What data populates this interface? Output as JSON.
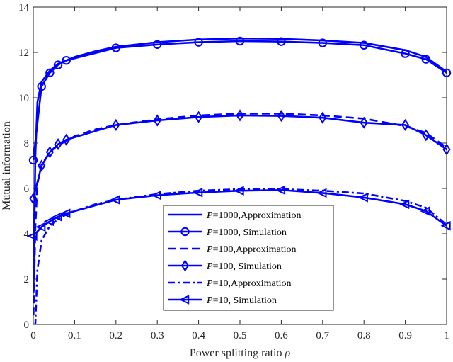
{
  "chart_data": {
    "type": "line",
    "xlabel": "Power splitting ratio",
    "xlabel_symbol": "ρ",
    "ylabel": "Mutual information",
    "xlim": [
      0,
      1
    ],
    "ylim": [
      0,
      14
    ],
    "xticks": [
      0,
      0.1,
      0.2,
      0.3,
      0.4,
      0.5,
      0.6,
      0.7,
      0.8,
      0.9,
      1
    ],
    "xtick_labels": [
      "0",
      "0.1",
      "0.2",
      "0.3",
      "0.4",
      "0.5",
      "0.6",
      "0.7",
      "0.8",
      "0.9",
      "1"
    ],
    "yticks": [
      0,
      2,
      4,
      6,
      8,
      10,
      12,
      14
    ],
    "ytick_labels": [
      "0",
      "2",
      "4",
      "6",
      "8",
      "10",
      "12",
      "14"
    ],
    "grid": false,
    "legend_position": "bottom-center",
    "line_color": "#0000FF",
    "series": [
      {
        "name_italic": "P",
        "name_rest": "=1000,Approximation",
        "style": "solid",
        "marker": "none",
        "x": [
          0.0005,
          0.005,
          0.01,
          0.02,
          0.04,
          0.06,
          0.08,
          0.1,
          0.15,
          0.2,
          0.3,
          0.4,
          0.5,
          0.6,
          0.7,
          0.8,
          0.9,
          0.95,
          1.0
        ],
        "y": [
          1.4,
          7.4,
          9.8,
          10.7,
          11.2,
          11.5,
          11.65,
          11.8,
          12.05,
          12.25,
          12.45,
          12.57,
          12.62,
          12.6,
          12.53,
          12.42,
          12.1,
          11.8,
          11.15
        ]
      },
      {
        "name_italic": "P",
        "name_rest": "=1000, Simulation",
        "style": "solid",
        "marker": "circle",
        "x": [
          0,
          0.02,
          0.04,
          0.06,
          0.08,
          0.2,
          0.3,
          0.4,
          0.5,
          0.6,
          0.7,
          0.8,
          0.9,
          0.95,
          1.0
        ],
        "y": [
          7.25,
          10.5,
          11.1,
          11.45,
          11.65,
          12.2,
          12.35,
          12.45,
          12.5,
          12.48,
          12.42,
          12.32,
          11.95,
          11.7,
          11.1
        ]
      },
      {
        "name_italic": "P",
        "name_rest": "=100,Approximation",
        "style": "dashed",
        "marker": "none",
        "x": [
          0.0005,
          0.005,
          0.01,
          0.02,
          0.04,
          0.06,
          0.08,
          0.1,
          0.15,
          0.2,
          0.3,
          0.4,
          0.5,
          0.6,
          0.7,
          0.8,
          0.9,
          0.95,
          1.0
        ],
        "y": [
          0.4,
          4.3,
          6.2,
          7.05,
          7.6,
          7.9,
          8.1,
          8.3,
          8.6,
          8.8,
          9.05,
          9.22,
          9.3,
          9.3,
          9.22,
          9.08,
          8.75,
          8.45,
          7.8
        ]
      },
      {
        "name_italic": "P",
        "name_rest": "=100, Simulation",
        "style": "solid",
        "marker": "diamond",
        "x": [
          0,
          0.02,
          0.04,
          0.06,
          0.08,
          0.2,
          0.3,
          0.4,
          0.5,
          0.6,
          0.7,
          0.8,
          0.9,
          0.95,
          1.0
        ],
        "y": [
          5.55,
          7.0,
          7.6,
          7.95,
          8.15,
          8.8,
          9.0,
          9.15,
          9.22,
          9.2,
          9.12,
          8.9,
          8.8,
          8.35,
          7.72
        ]
      },
      {
        "name_italic": "P",
        "name_rest": "=10,Approximation",
        "style": "dashdot",
        "marker": "none",
        "x": [
          0.0005,
          0.005,
          0.01,
          0.02,
          0.04,
          0.06,
          0.08,
          0.1,
          0.15,
          0.2,
          0.3,
          0.4,
          0.5,
          0.6,
          0.7,
          0.8,
          0.9,
          0.95,
          1.0
        ],
        "y": [
          0,
          0,
          2.4,
          3.7,
          4.35,
          4.65,
          4.85,
          5.0,
          5.3,
          5.5,
          5.75,
          5.9,
          5.97,
          5.97,
          5.9,
          5.78,
          5.45,
          5.15,
          4.4
        ]
      },
      {
        "name_italic": "P",
        "name_rest": "=10, Simulation",
        "style": "solid",
        "marker": "triangle-left",
        "x": [
          0,
          0.02,
          0.04,
          0.06,
          0.08,
          0.2,
          0.3,
          0.4,
          0.5,
          0.6,
          0.7,
          0.8,
          0.9,
          0.95,
          1.0
        ],
        "y": [
          3.9,
          4.3,
          4.55,
          4.75,
          4.9,
          5.5,
          5.7,
          5.82,
          5.9,
          5.93,
          5.8,
          5.6,
          5.3,
          5.0,
          4.35
        ]
      }
    ]
  }
}
